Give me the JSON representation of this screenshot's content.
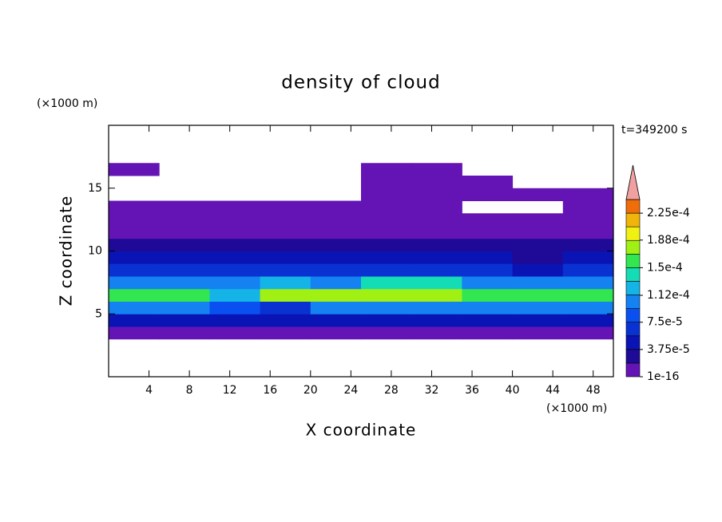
{
  "chart_data": {
    "type": "contour",
    "title": "density of cloud",
    "time_label": "t=349200 s",
    "x_label": "X coordinate",
    "y_label": "Z coordinate",
    "x_unit": "(×1000 m)",
    "y_unit": "(×1000 m)",
    "xlim": [
      0,
      50
    ],
    "ylim": [
      0,
      20
    ],
    "xticks": [
      4,
      8,
      12,
      16,
      20,
      24,
      28,
      32,
      36,
      40,
      44,
      48
    ],
    "yticks": [
      5,
      10,
      15
    ],
    "x": [
      2.5,
      7.5,
      12.5,
      17.5,
      22.5,
      27.5,
      32.5,
      37.5,
      42.5,
      47.5
    ],
    "z": [
      3.5,
      4.5,
      5.5,
      6.5,
      7.5,
      8.5,
      9.5,
      10.5,
      11.5,
      12.5,
      13.5,
      14.5,
      15.5,
      16.5
    ],
    "values": [
      [
        1e-05,
        1e-05,
        1e-05,
        1e-05,
        1e-05,
        1e-05,
        1e-05,
        1e-05,
        1e-05,
        1e-05
      ],
      [
        5e-05,
        5e-05,
        4e-05,
        4e-05,
        5e-05,
        5e-05,
        5e-05,
        5e-05,
        5e-05,
        5e-05
      ],
      [
        0.0001,
        0.0001,
        8e-05,
        6e-05,
        0.0001,
        0.0001,
        0.0001,
        0.0001,
        0.0001,
        0.0001
      ],
      [
        0.00015,
        0.00015,
        0.00012,
        0.00018,
        0.00018,
        0.00018,
        0.00018,
        0.00015,
        0.00015,
        0.00015
      ],
      [
        0.00011,
        0.00011,
        0.0001,
        0.00012,
        0.00011,
        0.00014,
        0.00014,
        0.00011,
        0.00011,
        0.00011
      ],
      [
        6e-05,
        6e-05,
        6e-05,
        6e-05,
        6e-05,
        6e-05,
        6e-05,
        6e-05,
        5e-05,
        6e-05
      ],
      [
        4e-05,
        4e-05,
        4e-05,
        4e-05,
        4e-05,
        4e-05,
        4e-05,
        4e-05,
        3e-05,
        4e-05
      ],
      [
        2.5e-05,
        2.5e-05,
        2.5e-05,
        2.5e-05,
        2.5e-05,
        2.5e-05,
        2.5e-05,
        2.5e-05,
        2e-05,
        2.5e-05
      ],
      [
        1.5e-05,
        1.5e-05,
        1.5e-05,
        1.5e-05,
        1.5e-05,
        1.5e-05,
        1.5e-05,
        1.5e-05,
        1.5e-05,
        1.5e-05
      ],
      [
        1.2e-05,
        1.2e-05,
        1.2e-05,
        1.2e-05,
        1.2e-05,
        1.2e-05,
        1e-05,
        1e-05,
        1e-05,
        1e-05
      ],
      [
        1e-05,
        1e-05,
        1e-05,
        1e-05,
        1e-05,
        1e-05,
        1e-05,
        null,
        null,
        1e-05
      ],
      [
        null,
        null,
        null,
        null,
        null,
        1e-05,
        1e-05,
        1e-05,
        1e-05,
        1e-05
      ],
      [
        null,
        null,
        null,
        null,
        null,
        1e-05,
        1e-05,
        1e-05,
        null,
        null
      ],
      [
        1e-05,
        null,
        null,
        null,
        null,
        1e-05,
        1e-05,
        null,
        null,
        null
      ]
    ],
    "colorbar": {
      "levels": [
        1e-16,
        1.875e-05,
        3.75e-05,
        5.625e-05,
        7.5e-05,
        9.375e-05,
        0.0001125,
        0.00013125,
        0.00015,
        0.00016875,
        0.0001875,
        0.00020625,
        0.000225,
        0.00024375
      ],
      "colors": [
        "#6414b4",
        "#1e0a96",
        "#0a14b4",
        "#0a32d2",
        "#0a50f0",
        "#1482f0",
        "#14b4e6",
        "#14dcb4",
        "#32e650",
        "#a0f014",
        "#f0f014",
        "#f0b40a",
        "#f06e0a"
      ],
      "extend_color": "#f0a0a0",
      "ticks": [
        1e-16,
        {
          "value": 3.75e-05,
          "label": "3.75e-5"
        },
        {
          "value": 7.5e-05,
          "label": "7.5e-5"
        },
        {
          "value": 0.000112,
          "label": "1.12e-4"
        },
        {
          "value": 0.00015,
          "label": "1.5e-4"
        },
        {
          "value": 0.000188,
          "label": "1.88e-4"
        },
        {
          "value": 0.000225,
          "label": "2.25e-4"
        }
      ]
    }
  }
}
